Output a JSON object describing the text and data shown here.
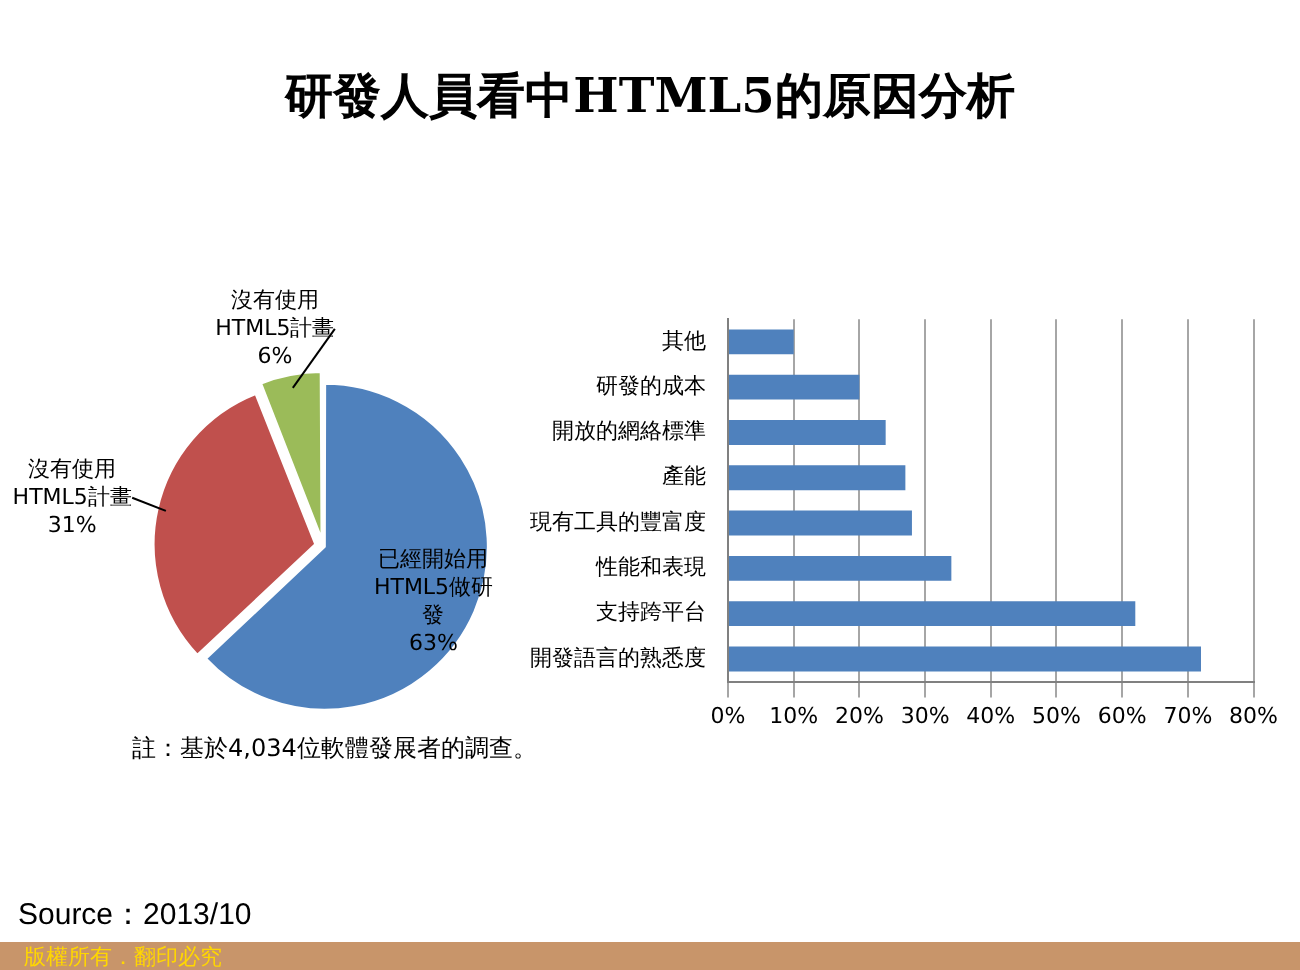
{
  "chart_data": [
    {
      "type": "pie",
      "title": "研發人員看中HTML5的原因分析",
      "categories": [
        "已經開始用HTML5做研發",
        "沒有使用HTML5計畫",
        "沒有使用HTML5計畫"
      ],
      "values": [
        63,
        31,
        6
      ],
      "colors": [
        "#4f81bd",
        "#c0504d",
        "#9bbb59"
      ],
      "value_labels": [
        "63%",
        "31%",
        "6%"
      ],
      "legend": false,
      "annotations": [
        "註：基於4,034位軟體發展者的調查。",
        "Source：2013/10",
        "版權所有．翻印必究"
      ]
    },
    {
      "type": "bar",
      "orientation": "horizontal",
      "categories": [
        "其他",
        "研發的成本",
        "開放的網絡標準",
        "產能",
        "現有工具的豐富度",
        "性能和表現",
        "支持跨平台",
        "開發語言的熟悉度"
      ],
      "values": [
        10,
        20,
        24,
        27,
        28,
        34,
        62,
        72
      ],
      "color": "#4f81bd",
      "xlim": [
        0,
        80
      ],
      "xticks": [
        {
          "value": 0,
          "label": "0%"
        },
        {
          "value": 10,
          "label": "10%"
        },
        {
          "value": 20,
          "label": "20%"
        },
        {
          "value": 30,
          "label": "30%"
        },
        {
          "value": 40,
          "label": "40%"
        },
        {
          "value": 50,
          "label": "50%"
        },
        {
          "value": 60,
          "label": "60%"
        },
        {
          "value": 70,
          "label": "70%"
        },
        {
          "value": 80,
          "label": "80%"
        }
      ],
      "grid": "x",
      "legend": false
    }
  ]
}
